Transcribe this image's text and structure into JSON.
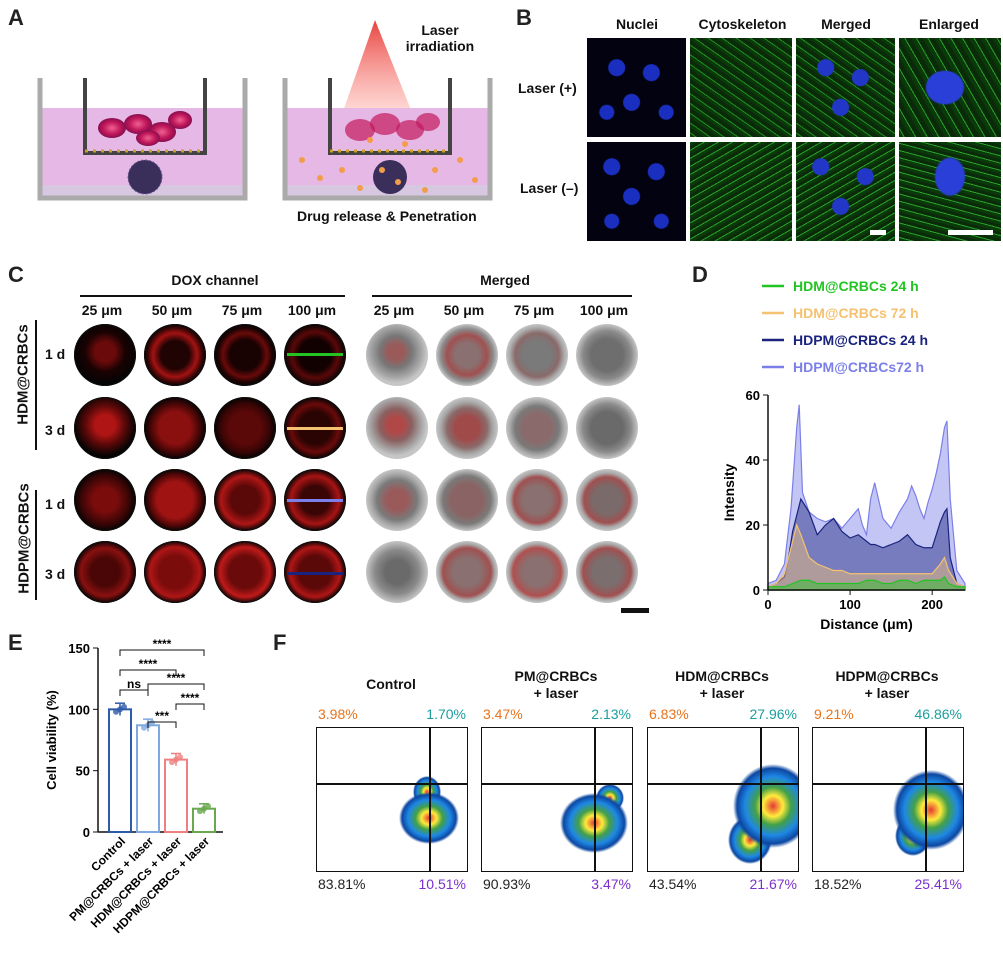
{
  "panels": {
    "A": {
      "label": "A",
      "laser_text": "Laser\nirradiation",
      "release_text": "Drug release & Penetration"
    },
    "B": {
      "label": "B",
      "columns": [
        "Nuclei",
        "Cytoskeleton",
        "Merged",
        "Enlarged"
      ],
      "rows": [
        "Laser (+)",
        "Laser (–)"
      ]
    },
    "C": {
      "label": "C",
      "group_dox": "DOX channel",
      "group_merged": "Merged",
      "depths": [
        "25 μm",
        "50 μm",
        "75 μm",
        "100 μm"
      ],
      "groups": [
        "HDM@CRBCs",
        "HDPM@CRBCs"
      ],
      "days": [
        "1 d",
        "3 d",
        "1 d",
        "3 d"
      ]
    },
    "D": {
      "label": "D"
    },
    "E": {
      "label": "E"
    },
    "F": {
      "label": "F",
      "plots": [
        {
          "title": "Control",
          "ul": "3.98%",
          "ur": "1.70%",
          "ll": "83.81%",
          "lr": "10.51%"
        },
        {
          "title": "PM@CRBCs\n+ laser",
          "ul": "3.47%",
          "ur": "2.13%",
          "ll": "90.93%",
          "lr": "3.47%"
        },
        {
          "title": "HDM@CRBCs\n+ laser",
          "ul": "6.83%",
          "ur": "27.96%",
          "ll": "43.54%",
          "lr": "21.67%"
        },
        {
          "title": "HDPM@CRBCs\n+ laser",
          "ul": "9.21%",
          "ur": "46.86%",
          "ll": "18.52%",
          "lr": "25.41%"
        }
      ],
      "colors": {
        "ul": "#e8731a",
        "ur": "#1a9e9e",
        "ll": "#222222",
        "lr": "#7b2fd0"
      }
    }
  },
  "chart_data": [
    {
      "type": "area",
      "panel": "D",
      "xlabel": "Distance (μm)",
      "ylabel": "Intensity",
      "xlim": [
        0,
        240
      ],
      "ylim": [
        0,
        60
      ],
      "xticks": [
        0,
        100,
        200
      ],
      "yticks": [
        0,
        20,
        40,
        60
      ],
      "series": [
        {
          "name": "HDPM@CRBCs72 h",
          "color": "#7b7fe8",
          "x": [
            0,
            10,
            20,
            28,
            35,
            38,
            42,
            50,
            60,
            70,
            80,
            90,
            100,
            110,
            115,
            120,
            125,
            130,
            140,
            150,
            160,
            170,
            175,
            180,
            185,
            190,
            195,
            200,
            205,
            210,
            215,
            218,
            222,
            230,
            240
          ],
          "y": [
            2,
            3,
            8,
            25,
            50,
            57,
            30,
            24,
            22,
            21,
            22,
            19,
            22,
            25,
            20,
            17,
            28,
            33,
            22,
            19,
            24,
            28,
            32,
            29,
            25,
            22,
            27,
            31,
            36,
            42,
            50,
            52,
            28,
            6,
            2
          ]
        },
        {
          "name": "HDPM@CRBCs 24 h",
          "color": "#1a237e",
          "x": [
            0,
            10,
            20,
            25,
            30,
            35,
            40,
            45,
            50,
            60,
            70,
            80,
            90,
            100,
            110,
            120,
            125,
            130,
            140,
            150,
            160,
            170,
            180,
            190,
            200,
            210,
            215,
            218,
            222,
            230,
            240
          ],
          "y": [
            1,
            2,
            4,
            10,
            18,
            23,
            28,
            26,
            24,
            17,
            20,
            22,
            18,
            16,
            17,
            15,
            14,
            14,
            13,
            14,
            15,
            17,
            14,
            13,
            13,
            21,
            24,
            25,
            10,
            2,
            1
          ]
        },
        {
          "name": "HDM@CRBCs 72 h",
          "color": "#f4c271",
          "x": [
            0,
            10,
            20,
            30,
            35,
            40,
            50,
            60,
            70,
            80,
            90,
            100,
            110,
            120,
            130,
            140,
            150,
            160,
            170,
            180,
            190,
            200,
            210,
            215,
            220,
            230,
            240
          ],
          "y": [
            1,
            2,
            5,
            15,
            20,
            17,
            10,
            8,
            7,
            6,
            6,
            5,
            5,
            5,
            5,
            5,
            5,
            5,
            5,
            5,
            5,
            5,
            8,
            10,
            6,
            2,
            1
          ]
        },
        {
          "name": "HDM@CRBCs 24 h",
          "color": "#22c422",
          "x": [
            0,
            10,
            20,
            30,
            40,
            50,
            60,
            70,
            80,
            90,
            100,
            110,
            120,
            130,
            140,
            150,
            160,
            170,
            180,
            190,
            200,
            210,
            215,
            220,
            230,
            240
          ],
          "y": [
            1,
            1,
            1,
            2,
            3,
            3,
            2,
            2,
            2,
            2,
            2,
            2,
            3,
            3,
            2,
            2,
            3,
            3,
            2,
            3,
            3,
            3,
            4,
            2,
            1,
            1
          ]
        }
      ]
    },
    {
      "type": "bar",
      "panel": "E",
      "ylabel": "Cell viability (%)",
      "categories": [
        "Control",
        "PM@CRBCs + laser",
        "HDM@CRBCs + laser",
        "HDPM@CRBCs + laser"
      ],
      "values": [
        100,
        87,
        59,
        19
      ],
      "errors": [
        5,
        5,
        5,
        4
      ],
      "colors": [
        "#2f5aa8",
        "#7fa8e0",
        "#f08080",
        "#6aa84f"
      ],
      "ylim": [
        0,
        150
      ],
      "yticks": [
        0,
        50,
        100,
        150
      ],
      "significance": [
        {
          "pair": [
            0,
            1
          ],
          "label": "ns"
        },
        {
          "pair": [
            0,
            2
          ],
          "label": "****"
        },
        {
          "pair": [
            0,
            3
          ],
          "label": "****"
        },
        {
          "pair": [
            1,
            2
          ],
          "label": "***"
        },
        {
          "pair": [
            1,
            3
          ],
          "label": "****"
        },
        {
          "pair": [
            2,
            3
          ],
          "label": "****"
        }
      ]
    }
  ]
}
